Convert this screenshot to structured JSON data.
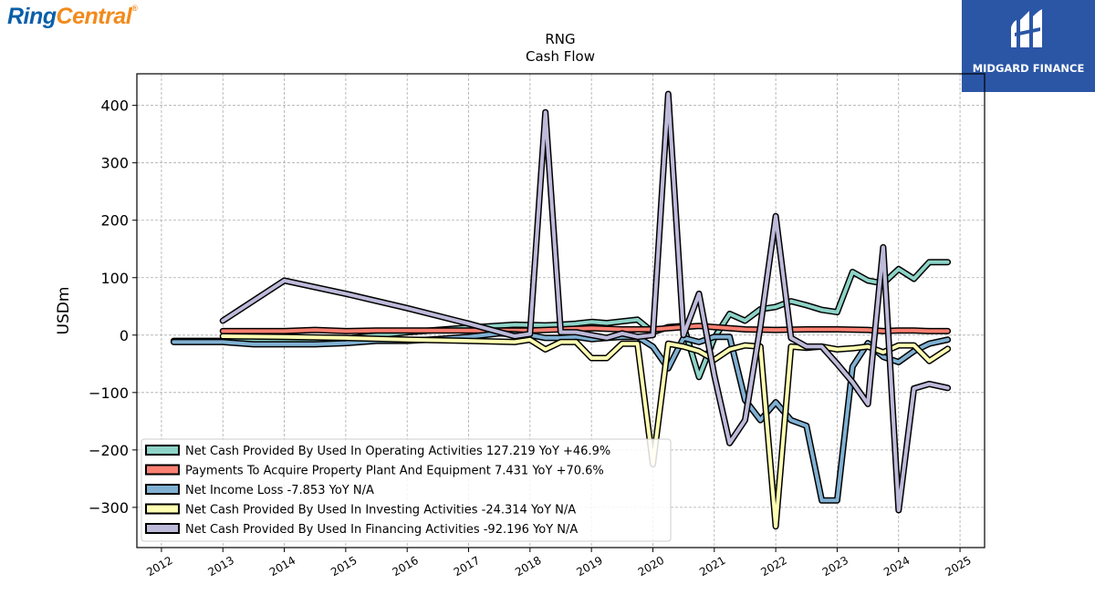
{
  "branding": {
    "logo_part1": "Ring",
    "logo_part2": "Central",
    "logo_mark": "®",
    "partner": "MIDGARD FINANCE"
  },
  "chart_data": {
    "type": "line",
    "title": "RNG",
    "subtitle": "Cash Flow",
    "ylabel": "USDm",
    "xlabel": "",
    "ylim": [
      -370,
      455
    ],
    "xlim": [
      2011.6,
      2025.4
    ],
    "yticks": [
      400,
      300,
      200,
      100,
      0,
      -100,
      -200,
      -300
    ],
    "ytick_labels": [
      "400",
      "300",
      "200",
      "100",
      "0",
      "−100",
      "−200",
      "−300"
    ],
    "xticks": [
      2012,
      2013,
      2014,
      2015,
      2016,
      2017,
      2018,
      2019,
      2020,
      2021,
      2022,
      2023,
      2024,
      2025
    ],
    "xtick_labels": [
      "2012",
      "2013",
      "2014",
      "2015",
      "2016",
      "2017",
      "2018",
      "2019",
      "2020",
      "2021",
      "2022",
      "2023",
      "2024",
      "2025"
    ],
    "grid": true,
    "legend_position": "lower-left",
    "series": [
      {
        "name": "Net Cash Provided By Used In Operating Activities",
        "legend": "Net Cash Provided By Used In Operating Activities  127.219 YoY +46.9%",
        "color": "#8dd3c7",
        "points": [
          [
            2012.2,
            -10
          ],
          [
            2012.7,
            -10
          ],
          [
            2013.0,
            -10
          ],
          [
            2014.0,
            -10
          ],
          [
            2015.0,
            -6
          ],
          [
            2016.0,
            5
          ],
          [
            2017.0,
            13
          ],
          [
            2017.75,
            18
          ],
          [
            2018.25,
            17
          ],
          [
            2018.5,
            18
          ],
          [
            2018.75,
            20
          ],
          [
            2019.0,
            23
          ],
          [
            2019.25,
            21
          ],
          [
            2019.5,
            24
          ],
          [
            2019.75,
            27
          ],
          [
            2020.0,
            5
          ],
          [
            2020.25,
            14
          ],
          [
            2020.5,
            16
          ],
          [
            2020.75,
            -73
          ],
          [
            2021.0,
            -5
          ],
          [
            2021.25,
            37
          ],
          [
            2021.5,
            25
          ],
          [
            2021.75,
            45
          ],
          [
            2022.0,
            49
          ],
          [
            2022.25,
            59
          ],
          [
            2022.5,
            52
          ],
          [
            2022.75,
            44
          ],
          [
            2023.0,
            40
          ],
          [
            2023.25,
            110
          ],
          [
            2023.5,
            95
          ],
          [
            2023.75,
            90
          ],
          [
            2024.0,
            115
          ],
          [
            2024.25,
            98
          ],
          [
            2024.5,
            127
          ],
          [
            2024.8,
            127
          ]
        ]
      },
      {
        "name": "Payments To Acquire Property Plant And Equipment",
        "legend": "Payments To Acquire Property Plant And Equipment  7.431 YoY +70.6%",
        "color": "#fb8072",
        "points": [
          [
            2013.0,
            7
          ],
          [
            2013.5,
            7
          ],
          [
            2014.0,
            7
          ],
          [
            2014.5,
            9
          ],
          [
            2015.0,
            7
          ],
          [
            2015.5,
            8
          ],
          [
            2016.0,
            8
          ],
          [
            2016.5,
            8
          ],
          [
            2017.0,
            8
          ],
          [
            2017.5,
            8
          ],
          [
            2018.0,
            8
          ],
          [
            2018.5,
            10
          ],
          [
            2019.0,
            12
          ],
          [
            2019.5,
            10
          ],
          [
            2020.0,
            10
          ],
          [
            2020.5,
            14
          ],
          [
            2020.75,
            16
          ],
          [
            2021.0,
            14
          ],
          [
            2021.5,
            10
          ],
          [
            2022.0,
            9
          ],
          [
            2022.5,
            10
          ],
          [
            2023.0,
            10
          ],
          [
            2023.5,
            9
          ],
          [
            2023.75,
            7
          ],
          [
            2024.0,
            8
          ],
          [
            2024.25,
            8
          ],
          [
            2024.5,
            7
          ],
          [
            2024.8,
            7
          ]
        ]
      },
      {
        "name": "Net Income Loss",
        "legend": "Net Income Loss  -7.853 YoY N/A",
        "color": "#80b1d3",
        "points": [
          [
            2012.2,
            -12
          ],
          [
            2012.5,
            -12
          ],
          [
            2013.0,
            -12
          ],
          [
            2013.5,
            -16
          ],
          [
            2014.0,
            -16
          ],
          [
            2014.5,
            -16
          ],
          [
            2015.0,
            -14
          ],
          [
            2015.5,
            -10
          ],
          [
            2016.0,
            -10
          ],
          [
            2016.5,
            -7
          ],
          [
            2017.0,
            -3
          ],
          [
            2017.5,
            3
          ],
          [
            2018.0,
            0
          ],
          [
            2018.25,
            -5
          ],
          [
            2018.5,
            -5
          ],
          [
            2018.75,
            -3
          ],
          [
            2019.0,
            -7
          ],
          [
            2019.25,
            -5
          ],
          [
            2019.5,
            -3
          ],
          [
            2019.75,
            -3
          ],
          [
            2020.0,
            -20
          ],
          [
            2020.25,
            -58
          ],
          [
            2020.5,
            -5
          ],
          [
            2020.75,
            -12
          ],
          [
            2021.0,
            -3
          ],
          [
            2021.25,
            -3
          ],
          [
            2021.5,
            -113
          ],
          [
            2021.75,
            -148
          ],
          [
            2022.0,
            -117
          ],
          [
            2022.25,
            -148
          ],
          [
            2022.5,
            -158
          ],
          [
            2022.75,
            -288
          ],
          [
            2023.0,
            -288
          ],
          [
            2023.25,
            -55
          ],
          [
            2023.5,
            -14
          ],
          [
            2023.75,
            -38
          ],
          [
            2024.0,
            -47
          ],
          [
            2024.25,
            -28
          ],
          [
            2024.5,
            -15
          ],
          [
            2024.8,
            -8
          ]
        ]
      },
      {
        "name": "Net Cash Provided By Used In Investing Activities",
        "legend": "Net Cash Provided By Used In Investing Activities  -24.314 YoY N/A",
        "color": "#ffffb3",
        "points": [
          [
            2013.0,
            -2
          ],
          [
            2014.0,
            -3
          ],
          [
            2015.0,
            -5
          ],
          [
            2016.0,
            -8
          ],
          [
            2017.0,
            -10
          ],
          [
            2017.75,
            -12
          ],
          [
            2018.0,
            -8
          ],
          [
            2018.25,
            -25
          ],
          [
            2018.5,
            -12
          ],
          [
            2018.75,
            -12
          ],
          [
            2019.0,
            -40
          ],
          [
            2019.25,
            -40
          ],
          [
            2019.5,
            -15
          ],
          [
            2019.75,
            -15
          ],
          [
            2020.0,
            -225
          ],
          [
            2020.25,
            -15
          ],
          [
            2020.5,
            -20
          ],
          [
            2020.75,
            -28
          ],
          [
            2021.0,
            -43
          ],
          [
            2021.25,
            -25
          ],
          [
            2021.5,
            -18
          ],
          [
            2021.75,
            -20
          ],
          [
            2022.0,
            -333
          ],
          [
            2022.25,
            -20
          ],
          [
            2022.5,
            -22
          ],
          [
            2022.75,
            -20
          ],
          [
            2023.0,
            -25
          ],
          [
            2023.25,
            -23
          ],
          [
            2023.5,
            -20
          ],
          [
            2023.75,
            -30
          ],
          [
            2024.0,
            -18
          ],
          [
            2024.25,
            -18
          ],
          [
            2024.5,
            -45
          ],
          [
            2024.8,
            -24
          ]
        ]
      },
      {
        "name": "Net Cash Provided By Used In Financing Activities",
        "legend": "Net Cash Provided By Used In Financing Activities  -92.196 YoY N/A",
        "color": "#bebada",
        "points": [
          [
            2013.0,
            25
          ],
          [
            2014.0,
            95
          ],
          [
            2015.0,
            72
          ],
          [
            2016.0,
            47
          ],
          [
            2017.0,
            20
          ],
          [
            2017.75,
            -2
          ],
          [
            2018.0,
            2
          ],
          [
            2018.25,
            388
          ],
          [
            2018.5,
            5
          ],
          [
            2018.75,
            5
          ],
          [
            2019.0,
            0
          ],
          [
            2019.25,
            -5
          ],
          [
            2019.5,
            3
          ],
          [
            2019.75,
            -3
          ],
          [
            2020.0,
            0
          ],
          [
            2020.25,
            420
          ],
          [
            2020.5,
            0
          ],
          [
            2020.75,
            72
          ],
          [
            2021.0,
            -70
          ],
          [
            2021.25,
            -188
          ],
          [
            2021.5,
            -148
          ],
          [
            2021.75,
            15
          ],
          [
            2022.0,
            207
          ],
          [
            2022.25,
            -5
          ],
          [
            2022.5,
            -20
          ],
          [
            2022.75,
            -20
          ],
          [
            2023.0,
            -50
          ],
          [
            2023.25,
            -82
          ],
          [
            2023.5,
            -120
          ],
          [
            2023.75,
            153
          ],
          [
            2024.0,
            -305
          ],
          [
            2024.25,
            -93
          ],
          [
            2024.5,
            -85
          ],
          [
            2024.8,
            -92
          ]
        ]
      }
    ]
  }
}
